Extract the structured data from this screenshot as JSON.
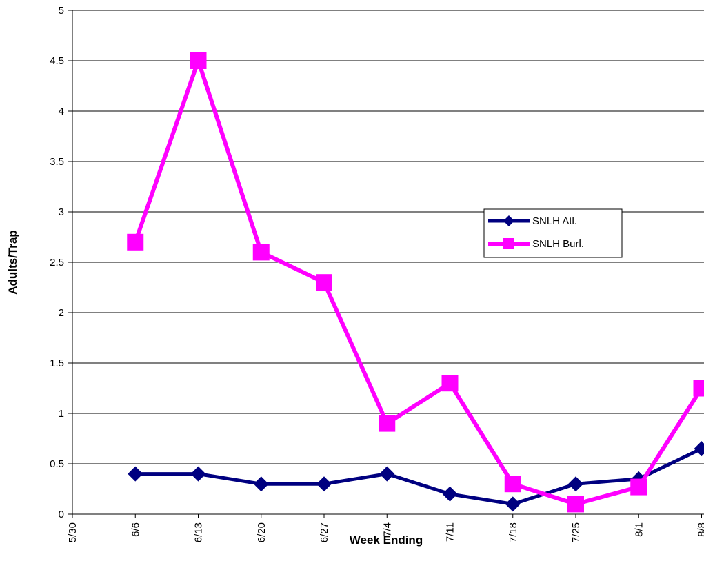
{
  "chart_data": {
    "type": "line",
    "xlabel": "Week Ending",
    "ylabel": "Adults/Trap",
    "categories": [
      "5/30",
      "6/6",
      "6/13",
      "6/20",
      "6/27",
      "7/4",
      "7/11",
      "7/18",
      "7/25",
      "8/1",
      "8/8"
    ],
    "ylim": [
      0,
      5
    ],
    "yticks": [
      0,
      0.5,
      1,
      1.5,
      2,
      2.5,
      3,
      3.5,
      4,
      4.5,
      5
    ],
    "ytick_labels": [
      "0",
      "0.5",
      "1",
      "1.5",
      "2",
      "2.5",
      "3",
      "3.5",
      "4",
      "4.5",
      "5"
    ],
    "grid": "horizontal",
    "legend_position": "right",
    "series": [
      {
        "name": "SNLH Atl.",
        "color": "#000080",
        "marker": "diamond",
        "values": [
          null,
          0.4,
          0.4,
          0.3,
          0.3,
          0.4,
          0.2,
          0.1,
          0.3,
          0.35,
          0.65
        ]
      },
      {
        "name": "SNLH Burl.",
        "color": "#ff00ff",
        "marker": "square",
        "values": [
          null,
          2.7,
          4.5,
          2.6,
          2.3,
          0.9,
          1.3,
          0.3,
          0.1,
          0.27,
          1.25
        ]
      }
    ]
  }
}
